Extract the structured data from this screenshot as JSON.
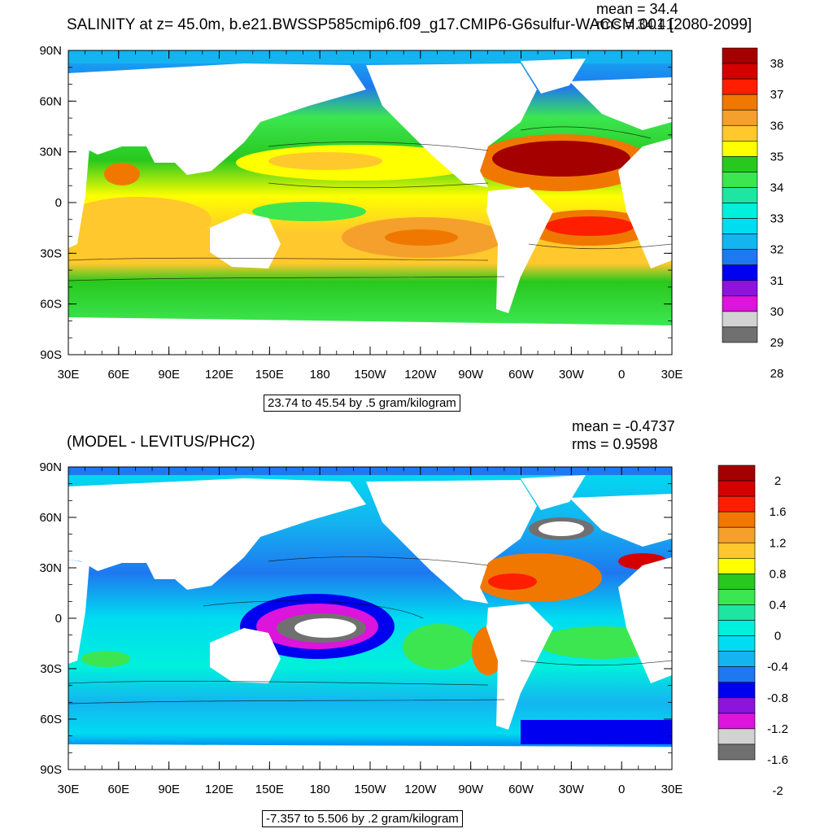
{
  "panels": [
    {
      "id": "top",
      "title": "SALINITY at z=  45.0m, b.e21.BWSSP585cmip6.f09_g17.CMIP6-G6sulfur-WACCM.001 [2080-2099]",
      "mean_label": "mean = 34.4",
      "rms_label": "rms = 34.41",
      "caption": "23.74 to 45.54 by .5 gram/kilogram",
      "lat_labels": [
        "90N",
        "60N",
        "30N",
        "0",
        "30S",
        "60S",
        "90S"
      ],
      "lon_labels": [
        "30E",
        "60E",
        "90E",
        "120E",
        "150E",
        "180",
        "150W",
        "120W",
        "90W",
        "60W",
        "30W",
        "0",
        "30E"
      ],
      "colorbar": {
        "labels": [
          "38",
          "37",
          "36",
          "35",
          "34",
          "33",
          "32",
          "31",
          "30",
          "29",
          "28"
        ],
        "colors": [
          "#a50000",
          "#d40000",
          "#ff1e00",
          "#f07800",
          "#f5a02d",
          "#ffc82d",
          "#ffff00",
          "#28c81e",
          "#3ce650",
          "#1ee6a0",
          "#00f0dc",
          "#00dcf0",
          "#14b4f0",
          "#1e78f0",
          "#0000f0",
          "#8c14dc",
          "#dc14dc",
          "#d2d2d2",
          "#707070"
        ]
      }
    },
    {
      "id": "bottom",
      "title": "(MODEL - LEVITUS/PHC2)",
      "mean_label": "mean = -0.4737",
      "rms_label": "rms = 0.9598",
      "caption": "-7.357 to 5.506 by .2 gram/kilogram",
      "lat_labels": [
        "90N",
        "60N",
        "30N",
        "0",
        "30S",
        "60S",
        "90S"
      ],
      "lon_labels": [
        "30E",
        "60E",
        "90E",
        "120E",
        "150E",
        "180",
        "150W",
        "120W",
        "90W",
        "60W",
        "30W",
        "0",
        "30E"
      ],
      "colorbar": {
        "labels": [
          "2",
          "1.6",
          "1.2",
          "0.8",
          "0.4",
          "0",
          "-0.4",
          "-0.8",
          "-1.2",
          "-1.6",
          "-2"
        ],
        "colors": [
          "#a50000",
          "#d40000",
          "#ff1e00",
          "#f07800",
          "#f5a02d",
          "#ffc82d",
          "#ffff00",
          "#28c81e",
          "#3ce650",
          "#1ee6a0",
          "#00f0dc",
          "#00dcf0",
          "#14b4f0",
          "#1e78f0",
          "#0000f0",
          "#8c14dc",
          "#dc14dc",
          "#d2d2d2",
          "#707070"
        ]
      }
    }
  ],
  "colors": {
    "land": "#ffffff",
    "frame": "#000000"
  }
}
